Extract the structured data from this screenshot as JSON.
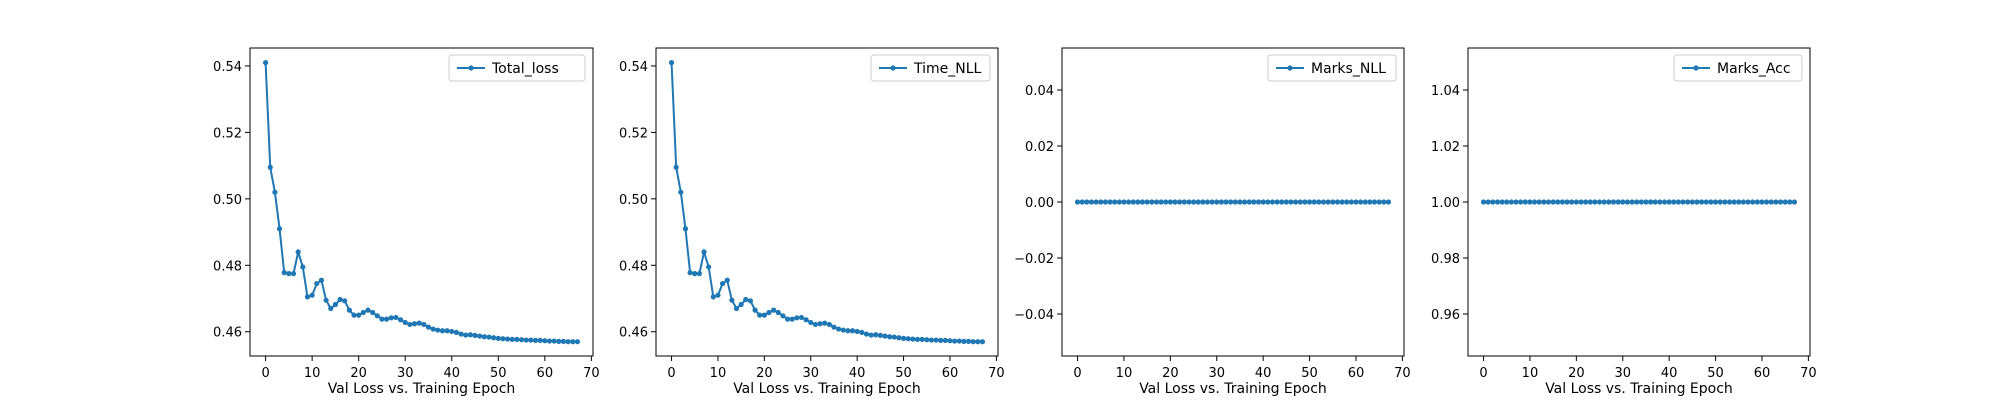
{
  "chart_data": [
    {
      "type": "line",
      "legend": "Total_loss",
      "xlabel": "Val Loss vs. Training Epoch",
      "ylabel": "",
      "color": "#1f77b4",
      "marker": "circle",
      "legend_position": "top-right",
      "grid": false,
      "xlim": [
        -3.35,
        70.35
      ],
      "ylim": [
        0.4527,
        0.5454
      ],
      "xticks": [
        0,
        10,
        20,
        30,
        40,
        50,
        60,
        70
      ],
      "yticks": [
        0.46,
        0.48,
        0.5,
        0.52,
        0.54
      ],
      "ytick_labels": [
        "0.46",
        "0.48",
        "0.50",
        "0.52",
        "0.54"
      ],
      "values": [
        0.541,
        0.5095,
        0.502,
        0.491,
        0.4778,
        0.4775,
        0.4775,
        0.484,
        0.4795,
        0.4705,
        0.471,
        0.4745,
        0.4755,
        0.4695,
        0.467,
        0.4682,
        0.4697,
        0.4693,
        0.4665,
        0.465,
        0.465,
        0.4658,
        0.4665,
        0.4658,
        0.4648,
        0.4638,
        0.4638,
        0.4642,
        0.4643,
        0.4636,
        0.4628,
        0.4622,
        0.4624,
        0.4626,
        0.4622,
        0.4614,
        0.4608,
        0.4605,
        0.4603,
        0.4603,
        0.4601,
        0.4598,
        0.4593,
        0.459,
        0.4591,
        0.4589,
        0.4587,
        0.4585,
        0.4584,
        0.4582,
        0.458,
        0.4579,
        0.4578,
        0.4577,
        0.4577,
        0.4576,
        0.4575,
        0.4575,
        0.4574,
        0.4574,
        0.4573,
        0.4572,
        0.4572,
        0.4571,
        0.4571,
        0.457,
        0.457,
        0.457
      ]
    },
    {
      "type": "line",
      "legend": "Time_NLL",
      "xlabel": "Val Loss vs. Training Epoch",
      "ylabel": "",
      "color": "#1f77b4",
      "marker": "circle",
      "legend_position": "top-right",
      "grid": false,
      "xlim": [
        -3.35,
        70.35
      ],
      "ylim": [
        0.4527,
        0.5454
      ],
      "xticks": [
        0,
        10,
        20,
        30,
        40,
        50,
        60,
        70
      ],
      "yticks": [
        0.46,
        0.48,
        0.5,
        0.52,
        0.54
      ],
      "ytick_labels": [
        "0.46",
        "0.48",
        "0.50",
        "0.52",
        "0.54"
      ],
      "values": [
        0.541,
        0.5095,
        0.502,
        0.491,
        0.4778,
        0.4775,
        0.4775,
        0.484,
        0.4795,
        0.4705,
        0.471,
        0.4745,
        0.4755,
        0.4695,
        0.467,
        0.4682,
        0.4697,
        0.4693,
        0.4665,
        0.465,
        0.465,
        0.4658,
        0.4665,
        0.4658,
        0.4648,
        0.4638,
        0.4638,
        0.4642,
        0.4643,
        0.4636,
        0.4628,
        0.4622,
        0.4624,
        0.4626,
        0.4622,
        0.4614,
        0.4608,
        0.4605,
        0.4603,
        0.4603,
        0.4601,
        0.4598,
        0.4593,
        0.459,
        0.4591,
        0.4589,
        0.4587,
        0.4585,
        0.4584,
        0.4582,
        0.458,
        0.4579,
        0.4578,
        0.4577,
        0.4577,
        0.4576,
        0.4575,
        0.4575,
        0.4574,
        0.4574,
        0.4573,
        0.4572,
        0.4572,
        0.4571,
        0.4571,
        0.457,
        0.457,
        0.457
      ]
    },
    {
      "type": "line",
      "legend": "Marks_NLL",
      "xlabel": "Val Loss vs. Training Epoch",
      "ylabel": "",
      "color": "#1f77b4",
      "marker": "circle",
      "legend_position": "top-right",
      "grid": false,
      "xlim": [
        -3.35,
        70.35
      ],
      "ylim": [
        -0.055,
        0.055
      ],
      "xticks": [
        0,
        10,
        20,
        30,
        40,
        50,
        60,
        70
      ],
      "yticks": [
        -0.04,
        -0.02,
        0.0,
        0.02,
        0.04
      ],
      "ytick_labels": [
        "−0.04",
        "−0.02",
        "0.00",
        "0.02",
        "0.04"
      ],
      "values": [
        0,
        0,
        0,
        0,
        0,
        0,
        0,
        0,
        0,
        0,
        0,
        0,
        0,
        0,
        0,
        0,
        0,
        0,
        0,
        0,
        0,
        0,
        0,
        0,
        0,
        0,
        0,
        0,
        0,
        0,
        0,
        0,
        0,
        0,
        0,
        0,
        0,
        0,
        0,
        0,
        0,
        0,
        0,
        0,
        0,
        0,
        0,
        0,
        0,
        0,
        0,
        0,
        0,
        0,
        0,
        0,
        0,
        0,
        0,
        0,
        0,
        0,
        0,
        0,
        0,
        0,
        0,
        0
      ]
    },
    {
      "type": "line",
      "legend": "Marks_Acc",
      "xlabel": "Val Loss vs. Training Epoch",
      "ylabel": "",
      "color": "#1f77b4",
      "marker": "circle",
      "legend_position": "top-right",
      "grid": false,
      "xlim": [
        -3.35,
        70.35
      ],
      "ylim": [
        0.945,
        1.055
      ],
      "xticks": [
        0,
        10,
        20,
        30,
        40,
        50,
        60,
        70
      ],
      "yticks": [
        0.96,
        0.98,
        1.0,
        1.02,
        1.04
      ],
      "ytick_labels": [
        "0.96",
        "0.98",
        "1.00",
        "1.02",
        "1.04"
      ],
      "values": [
        1,
        1,
        1,
        1,
        1,
        1,
        1,
        1,
        1,
        1,
        1,
        1,
        1,
        1,
        1,
        1,
        1,
        1,
        1,
        1,
        1,
        1,
        1,
        1,
        1,
        1,
        1,
        1,
        1,
        1,
        1,
        1,
        1,
        1,
        1,
        1,
        1,
        1,
        1,
        1,
        1,
        1,
        1,
        1,
        1,
        1,
        1,
        1,
        1,
        1,
        1,
        1,
        1,
        1,
        1,
        1,
        1,
        1,
        1,
        1,
        1,
        1,
        1,
        1,
        1,
        1,
        1,
        1
      ]
    }
  ]
}
